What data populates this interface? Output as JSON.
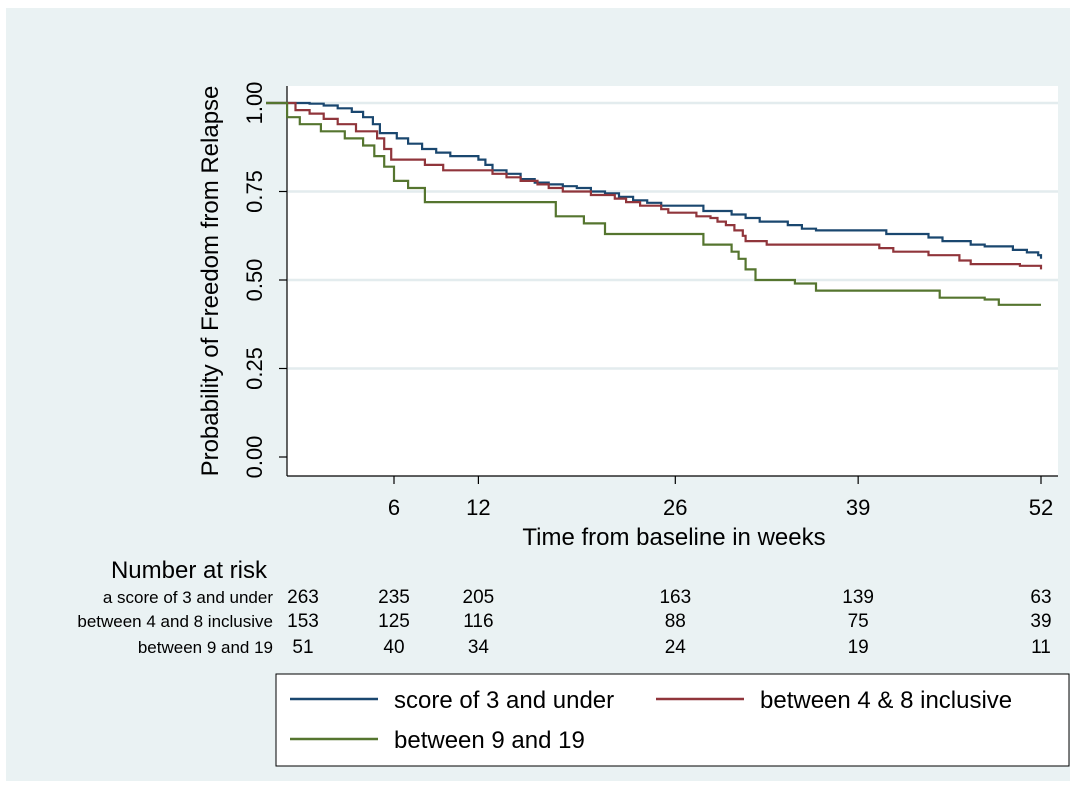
{
  "chart_data": {
    "type": "line",
    "ylabel": "Probability of Freedom from Relapse",
    "xlabel": "Time from baseline in weeks",
    "xlim": [
      -4,
      52
    ],
    "ylim": [
      0,
      1
    ],
    "x_ticks": [
      6,
      12,
      26,
      39,
      52
    ],
    "x_tick_labels": [
      "6",
      "12",
      "26",
      "39",
      "52"
    ],
    "y_ticks": [
      0,
      0.25,
      0.5,
      0.75,
      1
    ],
    "y_tick_labels": [
      "0.00",
      "0.25",
      "0.50",
      "0.75",
      "1.00"
    ],
    "grid": true,
    "legend_placement": "bottom",
    "series": [
      {
        "name": "score of 3 and under",
        "color": "#1a476f",
        "points": [
          [
            -3.1,
            1
          ],
          [
            -1.2,
            1
          ],
          [
            0,
            0.998
          ],
          [
            1,
            0.993
          ],
          [
            2,
            0.985
          ],
          [
            3,
            0.975
          ],
          [
            3.8,
            0.96
          ],
          [
            4.5,
            0.94
          ],
          [
            5,
            0.915
          ],
          [
            6.2,
            0.9
          ],
          [
            7,
            0.885
          ],
          [
            8,
            0.87
          ],
          [
            9,
            0.86
          ],
          [
            10,
            0.85
          ],
          [
            12,
            0.84
          ],
          [
            12.5,
            0.825
          ],
          [
            13,
            0.81
          ],
          [
            14,
            0.8
          ],
          [
            15,
            0.785
          ],
          [
            16,
            0.775
          ],
          [
            17,
            0.77
          ],
          [
            18,
            0.765
          ],
          [
            19,
            0.76
          ],
          [
            20,
            0.75
          ],
          [
            21,
            0.745
          ],
          [
            22,
            0.735
          ],
          [
            23,
            0.725
          ],
          [
            24,
            0.718
          ],
          [
            25,
            0.71
          ],
          [
            28,
            0.695
          ],
          [
            30,
            0.685
          ],
          [
            31,
            0.675
          ],
          [
            32,
            0.665
          ],
          [
            34,
            0.655
          ],
          [
            35,
            0.645
          ],
          [
            36,
            0.64
          ],
          [
            41,
            0.63
          ],
          [
            44,
            0.62
          ],
          [
            45,
            0.61
          ],
          [
            47,
            0.6
          ],
          [
            48,
            0.595
          ],
          [
            50,
            0.585
          ],
          [
            51,
            0.578
          ],
          [
            51.8,
            0.57
          ],
          [
            52,
            0.56
          ]
        ]
      },
      {
        "name": "between 4 & 8 inclusive",
        "color": "#90353b",
        "points": [
          [
            -3.1,
            1
          ],
          [
            -1.5,
            1
          ],
          [
            -1,
            0.98
          ],
          [
            0,
            0.97
          ],
          [
            1,
            0.955
          ],
          [
            2,
            0.94
          ],
          [
            3.3,
            0.92
          ],
          [
            4.8,
            0.9
          ],
          [
            5.3,
            0.87
          ],
          [
            5.8,
            0.84
          ],
          [
            8.2,
            0.825
          ],
          [
            9.5,
            0.81
          ],
          [
            13,
            0.8
          ],
          [
            14,
            0.79
          ],
          [
            15,
            0.78
          ],
          [
            16.2,
            0.77
          ],
          [
            17,
            0.76
          ],
          [
            18,
            0.75
          ],
          [
            20,
            0.74
          ],
          [
            21.7,
            0.73
          ],
          [
            22.5,
            0.72
          ],
          [
            23.5,
            0.71
          ],
          [
            25,
            0.7
          ],
          [
            25.5,
            0.69
          ],
          [
            27.5,
            0.68
          ],
          [
            28.5,
            0.675
          ],
          [
            29,
            0.665
          ],
          [
            29.6,
            0.655
          ],
          [
            30.2,
            0.64
          ],
          [
            30.8,
            0.625
          ],
          [
            31,
            0.61
          ],
          [
            32.5,
            0.6
          ],
          [
            40.5,
            0.59
          ],
          [
            41.5,
            0.58
          ],
          [
            44,
            0.57
          ],
          [
            46.2,
            0.555
          ],
          [
            47,
            0.545
          ],
          [
            50.5,
            0.54
          ],
          [
            52,
            0.53
          ]
        ]
      },
      {
        "name": "between 9 and 19",
        "color": "#55752f",
        "points": [
          [
            -3.1,
            1
          ],
          [
            -2,
            1
          ],
          [
            -1.6,
            0.96
          ],
          [
            -0.7,
            0.94
          ],
          [
            0.8,
            0.92
          ],
          [
            2.5,
            0.9
          ],
          [
            3.8,
            0.88
          ],
          [
            4.6,
            0.85
          ],
          [
            5.3,
            0.82
          ],
          [
            6,
            0.78
          ],
          [
            7,
            0.76
          ],
          [
            8.2,
            0.72
          ],
          [
            10,
            0.72
          ],
          [
            16.5,
            0.72
          ],
          [
            17.5,
            0.68
          ],
          [
            19.5,
            0.66
          ],
          [
            21,
            0.63
          ],
          [
            28,
            0.6
          ],
          [
            30,
            0.58
          ],
          [
            30.5,
            0.56
          ],
          [
            31,
            0.53
          ],
          [
            31.7,
            0.5
          ],
          [
            34.5,
            0.49
          ],
          [
            36,
            0.47
          ],
          [
            41,
            0.47
          ],
          [
            44.8,
            0.45
          ],
          [
            48,
            0.445
          ],
          [
            49,
            0.43
          ],
          [
            52,
            0.43
          ]
        ]
      }
    ]
  },
  "risk_table": {
    "heading": "Number at risk",
    "rows": [
      {
        "label": "a score of 3 and under",
        "values": [
          "263",
          "235",
          "205",
          "163",
          "139",
          "63"
        ]
      },
      {
        "label": "between 4 and 8 inclusive",
        "values": [
          "153",
          "125",
          "116",
          "88",
          "75",
          "39"
        ]
      },
      {
        "label": "between 9 and 19",
        "values": [
          "51",
          "40",
          "34",
          "24",
          "19",
          "11"
        ]
      }
    ]
  },
  "legend": {
    "entries": [
      {
        "label": "score of 3 and under",
        "color": "#1a476f"
      },
      {
        "label": "between 4 & 8 inclusive",
        "color": "#90353b"
      },
      {
        "label": "between 9 and 19",
        "color": "#55752f"
      }
    ]
  }
}
